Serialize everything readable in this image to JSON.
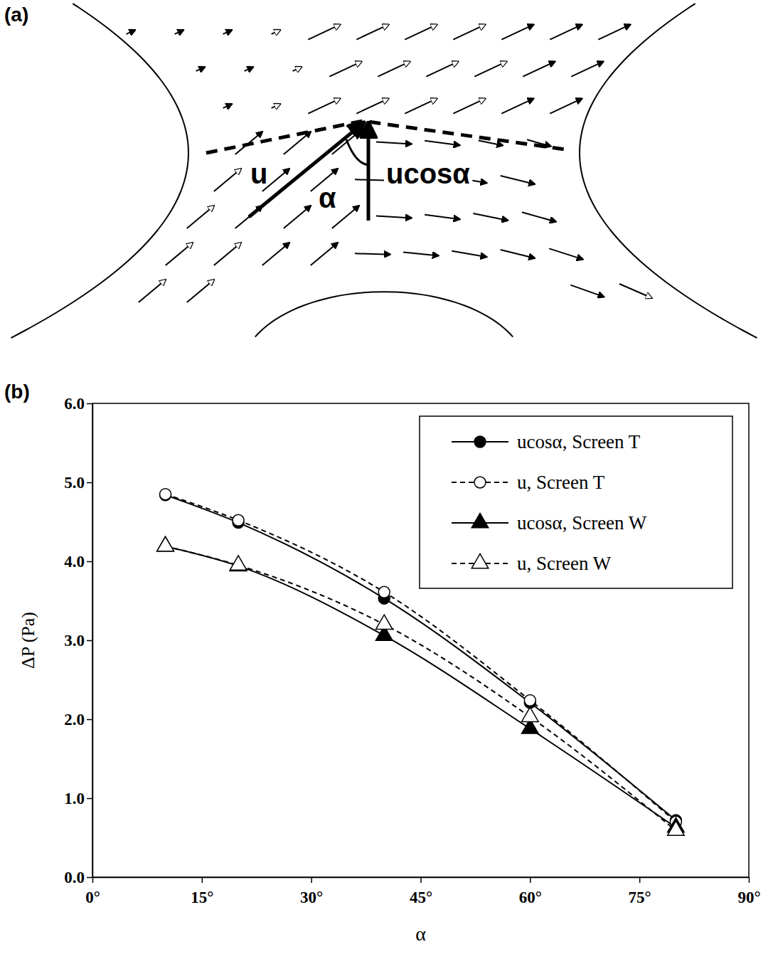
{
  "panel_a": {
    "label": "(a)",
    "vector_label": "u",
    "angle_label": "α",
    "component_label": "ucosα"
  },
  "chart_data": {
    "type": "line",
    "title": "(b)",
    "x_label": "α",
    "y_label": "ΔP (Pa)",
    "x": [
      10,
      20,
      40,
      60,
      80
    ],
    "xlim": [
      0,
      90
    ],
    "xticks": [
      {
        "value": 0,
        "label": "0°"
      },
      {
        "value": 15,
        "label": "15°"
      },
      {
        "value": 30,
        "label": "30°"
      },
      {
        "value": 45,
        "label": "45°"
      },
      {
        "value": 60,
        "label": "60°"
      },
      {
        "value": 75,
        "label": "75°"
      },
      {
        "value": 90,
        "label": "90°"
      }
    ],
    "ylim": [
      0,
      6
    ],
    "yticks": [
      {
        "value": 0,
        "label": "0.0"
      },
      {
        "value": 1,
        "label": "1.0"
      },
      {
        "value": 2,
        "label": "2.0"
      },
      {
        "value": 3,
        "label": "3.0"
      },
      {
        "value": 4,
        "label": "4.0"
      },
      {
        "value": 5,
        "label": "5.0"
      },
      {
        "value": 6,
        "label": "6.0"
      }
    ],
    "grid": false,
    "legend": "top-right",
    "series": [
      {
        "name": "ucosα, Screen T",
        "color": "#000000",
        "marker": "circle",
        "line_style": "solid",
        "values": [
          4.84,
          4.49,
          3.53,
          2.21,
          0.72
        ]
      },
      {
        "name": "u, Screen T",
        "color": "#000000",
        "marker": "open-circle",
        "line_style": "dashed",
        "values": [
          4.85,
          4.52,
          3.61,
          2.24,
          0.7
        ]
      },
      {
        "name": "ucosα, Screen W",
        "color": "#000000",
        "marker": "triangle",
        "line_style": "solid",
        "values": [
          4.19,
          3.94,
          3.06,
          1.88,
          0.63
        ]
      },
      {
        "name": "u, Screen W",
        "color": "#000000",
        "marker": "open-triangle",
        "line_style": "dashed",
        "values": [
          4.19,
          3.95,
          3.2,
          2.03,
          0.59
        ]
      }
    ]
  }
}
